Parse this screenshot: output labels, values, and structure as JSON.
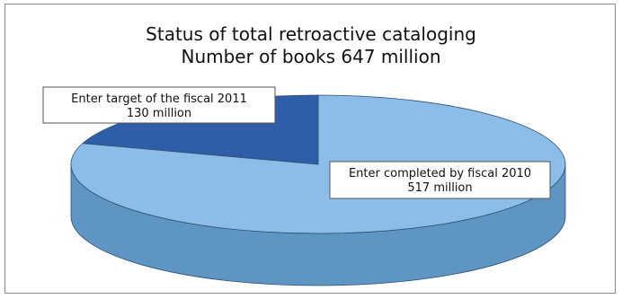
{
  "chart_data": {
    "type": "pie",
    "title": "Status of total retroactive cataloging",
    "subtitle": "Number of books 647 million",
    "slices": [
      {
        "label": "Enter completed by fiscal 2010",
        "value_text": "517 million",
        "value": 517,
        "color_top": "#8cbde8",
        "color_side": "#5e95c3"
      },
      {
        "label": "Enter target of the fiscal 2011",
        "value_text": "130 million",
        "value": 130,
        "color_top": "#2f5ea8",
        "color_side": "#1e3f78"
      }
    ]
  }
}
